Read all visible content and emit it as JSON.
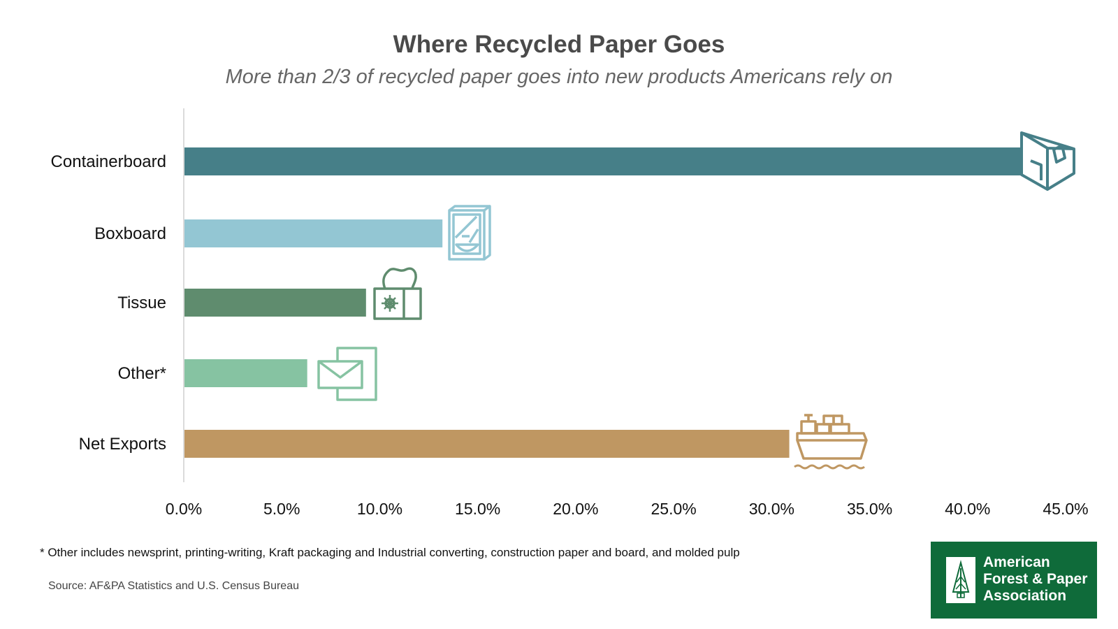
{
  "colors": {
    "title": "#4a4a4a",
    "subtitle": "#666666",
    "containerboard": "#467f88",
    "boxboard": "#93c6d3",
    "tissue": "#5f8c6e",
    "other": "#86c3a2",
    "net_exports": "#bf9762",
    "logo_green": "#0f6b3a"
  },
  "chart_data": {
    "type": "bar",
    "orientation": "horizontal",
    "title": "Where Recycled Paper Goes",
    "subtitle": "More than 2/3 of recycled paper goes into new products Americans rely on",
    "categories": [
      "Containerboard",
      "Boxboard",
      "Tissue",
      "Other*",
      "Net Exports"
    ],
    "values": [
      42.7,
      13.2,
      9.3,
      6.3,
      30.9
    ],
    "value_unit": "percent",
    "xlim": [
      0,
      45
    ],
    "x_ticks": [
      "0.0%",
      "5.0%",
      "10.0%",
      "15.0%",
      "20.0%",
      "25.0%",
      "30.0%",
      "35.0%",
      "40.0%",
      "45.0%"
    ],
    "x_tick_values": [
      0,
      5,
      10,
      15,
      20,
      25,
      30,
      35,
      40,
      45
    ],
    "grid": false,
    "legend": "none",
    "bar_icons": [
      "box-icon",
      "cereal-box-icon",
      "tissue-box-icon",
      "envelope-icon",
      "cargo-ship-icon"
    ]
  },
  "footnote": "*  Other includes newsprint, printing-writing, Kraft packaging and Industrial converting, construction paper and board, and molded pulp",
  "source": "Source: AF&PA Statistics and U.S. Census Bureau",
  "logo": {
    "line1": "American",
    "line2": "Forest & Paper",
    "line3": "Association",
    "icon": "tree-icon"
  }
}
